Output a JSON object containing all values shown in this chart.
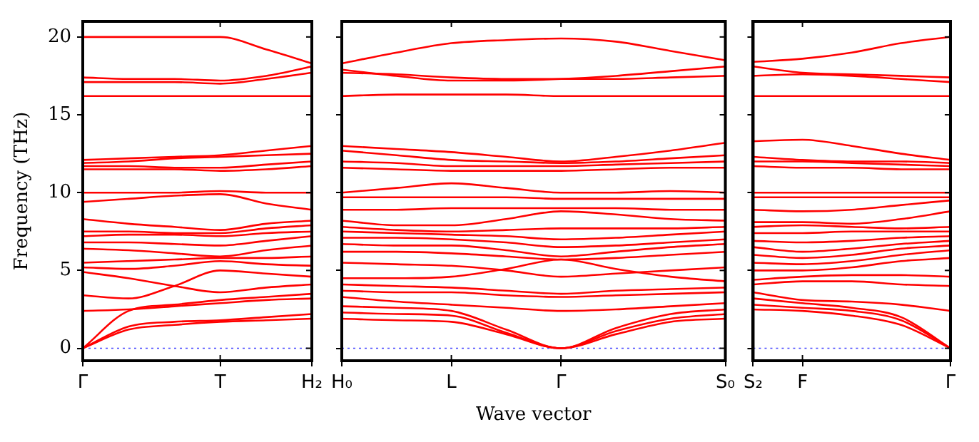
{
  "chart_data": [
    {
      "type": "line",
      "ylabel": "Frequency (THz)",
      "categories": [
        "Γ",
        null,
        null,
        "T",
        null,
        "H₂"
      ],
      "ylim": [
        -0.8,
        21
      ],
      "yticks": [
        0,
        5,
        10,
        15,
        20
      ],
      "grid": false,
      "legend": false,
      "line_style": "solid",
      "ref_lines": [
        {
          "axis": "y",
          "value": 0,
          "color": "#4444ff",
          "line_style": "dotted"
        }
      ],
      "series": [
        {
          "color": "#ff0000",
          "values": [
            20.0,
            20.0,
            20.0,
            20.0,
            19.2,
            18.3
          ]
        },
        {
          "color": "#ff0000",
          "values": [
            17.4,
            17.3,
            17.3,
            17.2,
            17.5,
            18.1
          ]
        },
        {
          "color": "#ff0000",
          "values": [
            17.1,
            17.1,
            17.1,
            17.0,
            17.3,
            17.7
          ]
        },
        {
          "color": "#ff0000",
          "values": [
            16.2,
            16.2,
            16.2,
            16.2,
            16.2,
            16.2
          ]
        },
        {
          "color": "#ff0000",
          "values": [
            12.1,
            12.2,
            12.3,
            12.4,
            12.7,
            13.0
          ]
        },
        {
          "color": "#ff0000",
          "values": [
            11.9,
            12.0,
            12.2,
            12.3,
            12.4,
            12.5
          ]
        },
        {
          "color": "#ff0000",
          "values": [
            11.7,
            11.7,
            11.6,
            11.6,
            11.8,
            12.0
          ]
        },
        {
          "color": "#ff0000",
          "values": [
            11.5,
            11.5,
            11.5,
            11.4,
            11.5,
            11.7
          ]
        },
        {
          "color": "#ff0000",
          "values": [
            10.0,
            10.0,
            10.0,
            10.1,
            10.0,
            10.0
          ]
        },
        {
          "color": "#ff0000",
          "values": [
            9.4,
            9.6,
            9.8,
            9.9,
            9.3,
            8.9
          ]
        },
        {
          "color": "#ff0000",
          "values": [
            8.3,
            8.0,
            7.8,
            7.6,
            8.0,
            8.2
          ]
        },
        {
          "color": "#ff0000",
          "values": [
            7.5,
            7.5,
            7.4,
            7.4,
            7.7,
            7.9
          ]
        },
        {
          "color": "#ff0000",
          "values": [
            7.2,
            7.3,
            7.3,
            7.2,
            7.4,
            7.5
          ]
        },
        {
          "color": "#ff0000",
          "values": [
            6.8,
            6.8,
            6.7,
            6.6,
            6.9,
            7.2
          ]
        },
        {
          "color": "#ff0000",
          "values": [
            6.4,
            6.3,
            6.1,
            5.9,
            6.3,
            6.6
          ]
        },
        {
          "color": "#ff0000",
          "values": [
            5.5,
            5.6,
            5.7,
            5.8,
            5.8,
            5.9
          ]
        },
        {
          "color": "#ff0000",
          "values": [
            5.2,
            5.1,
            5.3,
            5.6,
            5.4,
            5.3
          ]
        },
        {
          "color": "#ff0000",
          "values": [
            4.9,
            4.5,
            4.0,
            3.6,
            3.9,
            4.1
          ]
        },
        {
          "color": "#ff0000",
          "values": [
            3.4,
            3.2,
            4.0,
            5.0,
            4.8,
            4.6
          ]
        },
        {
          "color": "#ff0000",
          "values": [
            2.4,
            2.5,
            2.7,
            2.9,
            3.1,
            3.2
          ]
        },
        {
          "color": "#ff0000",
          "values": [
            0,
            2.4,
            2.8,
            3.1,
            3.3,
            3.5
          ]
        },
        {
          "color": "#ff0000",
          "values": [
            0,
            1.4,
            1.7,
            1.8,
            2.0,
            2.2
          ]
        },
        {
          "color": "#ff0000",
          "values": [
            0,
            1.2,
            1.5,
            1.7,
            1.8,
            1.9
          ]
        }
      ]
    },
    {
      "type": "line",
      "xlabel": "Wave vector",
      "categories": [
        "H₀",
        null,
        "L",
        null,
        "Γ",
        null,
        null,
        "S₀"
      ],
      "ylim": [
        -0.8,
        21
      ],
      "yticks": [
        {
          "value": 0,
          "label": null
        },
        {
          "value": 5,
          "label": null
        },
        {
          "value": 10,
          "label": null
        },
        {
          "value": 15,
          "label": null
        },
        {
          "value": 20,
          "label": null
        }
      ],
      "tick_labels": "x",
      "grid": false,
      "legend": false,
      "line_style": "solid",
      "ref_lines": [
        {
          "axis": "y",
          "value": 0,
          "color": "#4444ff",
          "line_style": "dotted"
        }
      ],
      "series": [
        {
          "color": "#ff0000",
          "values": [
            18.3,
            19.0,
            19.6,
            19.8,
            19.9,
            19.7,
            19.1,
            18.5
          ]
        },
        {
          "color": "#ff0000",
          "values": [
            17.9,
            17.5,
            17.2,
            17.2,
            17.3,
            17.5,
            17.8,
            18.1
          ]
        },
        {
          "color": "#ff0000",
          "values": [
            17.7,
            17.6,
            17.4,
            17.3,
            17.3,
            17.3,
            17.4,
            17.5
          ]
        },
        {
          "color": "#ff0000",
          "values": [
            16.2,
            16.3,
            16.3,
            16.3,
            16.2,
            16.2,
            16.2,
            16.2
          ]
        },
        {
          "color": "#ff0000",
          "values": [
            13.0,
            12.8,
            12.6,
            12.3,
            12.0,
            12.3,
            12.7,
            13.2
          ]
        },
        {
          "color": "#ff0000",
          "values": [
            12.7,
            12.4,
            12.1,
            12.0,
            11.9,
            12.0,
            12.2,
            12.4
          ]
        },
        {
          "color": "#ff0000",
          "values": [
            12.0,
            11.9,
            11.7,
            11.7,
            11.7,
            11.8,
            11.9,
            12.0
          ]
        },
        {
          "color": "#ff0000",
          "values": [
            11.6,
            11.5,
            11.4,
            11.4,
            11.4,
            11.5,
            11.6,
            11.6
          ]
        },
        {
          "color": "#ff0000",
          "values": [
            10.0,
            10.3,
            10.6,
            10.3,
            10.0,
            10.0,
            10.1,
            10.0
          ]
        },
        {
          "color": "#ff0000",
          "values": [
            9.7,
            9.7,
            9.7,
            9.7,
            9.6,
            9.6,
            9.6,
            9.6
          ]
        },
        {
          "color": "#ff0000",
          "values": [
            8.9,
            8.9,
            9.0,
            9.0,
            9.0,
            9.0,
            8.9,
            8.9
          ]
        },
        {
          "color": "#ff0000",
          "values": [
            8.2,
            7.9,
            7.9,
            8.3,
            8.8,
            8.6,
            8.3,
            8.2
          ]
        },
        {
          "color": "#ff0000",
          "values": [
            7.8,
            7.6,
            7.5,
            7.6,
            7.7,
            7.7,
            7.7,
            7.8
          ]
        },
        {
          "color": "#ff0000",
          "values": [
            7.5,
            7.4,
            7.3,
            7.2,
            7.0,
            7.1,
            7.3,
            7.5
          ]
        },
        {
          "color": "#ff0000",
          "values": [
            7.1,
            7.1,
            7.0,
            6.8,
            6.5,
            6.6,
            6.8,
            7.0
          ]
        },
        {
          "color": "#ff0000",
          "values": [
            6.7,
            6.6,
            6.6,
            6.3,
            5.9,
            6.2,
            6.5,
            6.7
          ]
        },
        {
          "color": "#ff0000",
          "values": [
            6.2,
            6.2,
            6.1,
            5.9,
            5.7,
            5.8,
            6.0,
            6.2
          ]
        },
        {
          "color": "#ff0000",
          "values": [
            5.5,
            5.4,
            5.3,
            5.0,
            4.6,
            4.8,
            5.0,
            5.2
          ]
        },
        {
          "color": "#ff0000",
          "values": [
            4.5,
            4.5,
            4.6,
            5.1,
            5.7,
            5.1,
            4.6,
            4.3
          ]
        },
        {
          "color": "#ff0000",
          "values": [
            4.1,
            4.0,
            3.9,
            3.7,
            3.5,
            3.7,
            3.8,
            3.9
          ]
        },
        {
          "color": "#ff0000",
          "values": [
            3.7,
            3.6,
            3.6,
            3.4,
            3.3,
            3.4,
            3.5,
            3.6
          ]
        },
        {
          "color": "#ff0000",
          "values": [
            3.3,
            3.0,
            2.8,
            2.6,
            2.4,
            2.5,
            2.7,
            2.9
          ]
        },
        {
          "color": "#ff0000",
          "values": [
            2.7,
            2.6,
            2.4,
            1.2,
            0,
            1.3,
            2.2,
            2.5
          ]
        },
        {
          "color": "#ff0000",
          "values": [
            2.3,
            2.2,
            2.1,
            1.0,
            0,
            1.1,
            1.9,
            2.2
          ]
        },
        {
          "color": "#ff0000",
          "values": [
            1.9,
            1.8,
            1.7,
            0.9,
            0,
            0.9,
            1.7,
            1.9
          ]
        }
      ]
    },
    {
      "type": "line",
      "categories": [
        "S₂",
        "F",
        null,
        null,
        "Γ"
      ],
      "ylim": [
        -0.8,
        21
      ],
      "yticks": [
        {
          "value": 0,
          "label": null
        },
        {
          "value": 5,
          "label": null
        },
        {
          "value": 10,
          "label": null
        },
        {
          "value": 15,
          "label": null
        },
        {
          "value": 20,
          "label": null
        }
      ],
      "tick_labels": "x",
      "grid": false,
      "legend": false,
      "line_style": "solid",
      "ref_lines": [
        {
          "axis": "y",
          "value": 0,
          "color": "#4444ff",
          "line_style": "dotted"
        }
      ],
      "series": [
        {
          "color": "#ff0000",
          "values": [
            18.4,
            18.6,
            19.0,
            19.6,
            20.0
          ]
        },
        {
          "color": "#ff0000",
          "values": [
            18.1,
            17.7,
            17.6,
            17.5,
            17.4
          ]
        },
        {
          "color": "#ff0000",
          "values": [
            17.5,
            17.6,
            17.5,
            17.3,
            17.1
          ]
        },
        {
          "color": "#ff0000",
          "values": [
            16.2,
            16.2,
            16.2,
            16.2,
            16.2
          ]
        },
        {
          "color": "#ff0000",
          "values": [
            13.3,
            13.4,
            13.0,
            12.5,
            12.1
          ]
        },
        {
          "color": "#ff0000",
          "values": [
            12.3,
            12.1,
            12.0,
            12.0,
            11.9
          ]
        },
        {
          "color": "#ff0000",
          "values": [
            12.0,
            12.0,
            11.9,
            11.8,
            11.7
          ]
        },
        {
          "color": "#ff0000",
          "values": [
            11.7,
            11.6,
            11.6,
            11.5,
            11.5
          ]
        },
        {
          "color": "#ff0000",
          "values": [
            10.0,
            10.0,
            10.0,
            10.0,
            10.0
          ]
        },
        {
          "color": "#ff0000",
          "values": [
            9.7,
            9.7,
            9.7,
            9.7,
            9.7
          ]
        },
        {
          "color": "#ff0000",
          "values": [
            8.9,
            8.8,
            8.9,
            9.2,
            9.5
          ]
        },
        {
          "color": "#ff0000",
          "values": [
            8.1,
            8.1,
            8.0,
            8.3,
            8.8
          ]
        },
        {
          "color": "#ff0000",
          "values": [
            7.8,
            7.9,
            7.8,
            7.7,
            7.8
          ]
        },
        {
          "color": "#ff0000",
          "values": [
            7.4,
            7.4,
            7.5,
            7.5,
            7.5
          ]
        },
        {
          "color": "#ff0000",
          "values": [
            6.9,
            6.8,
            6.9,
            7.1,
            7.2
          ]
        },
        {
          "color": "#ff0000",
          "values": [
            6.5,
            6.2,
            6.4,
            6.7,
            6.9
          ]
        },
        {
          "color": "#ff0000",
          "values": [
            6.0,
            5.8,
            6.0,
            6.4,
            6.6
          ]
        },
        {
          "color": "#ff0000",
          "values": [
            5.5,
            5.4,
            5.6,
            6.0,
            6.3
          ]
        },
        {
          "color": "#ff0000",
          "values": [
            5.0,
            5.0,
            5.2,
            5.6,
            5.8
          ]
        },
        {
          "color": "#ff0000",
          "values": [
            4.4,
            4.6,
            4.7,
            4.7,
            4.6
          ]
        },
        {
          "color": "#ff0000",
          "values": [
            4.1,
            4.3,
            4.3,
            4.1,
            4.0
          ]
        },
        {
          "color": "#ff0000",
          "values": [
            3.6,
            3.1,
            3.0,
            2.8,
            2.4
          ]
        },
        {
          "color": "#ff0000",
          "values": [
            3.2,
            2.9,
            2.6,
            2.0,
            0
          ]
        },
        {
          "color": "#ff0000",
          "values": [
            2.8,
            2.6,
            2.4,
            1.8,
            0
          ]
        },
        {
          "color": "#ff0000",
          "values": [
            2.5,
            2.4,
            2.1,
            1.5,
            0
          ]
        }
      ]
    }
  ]
}
